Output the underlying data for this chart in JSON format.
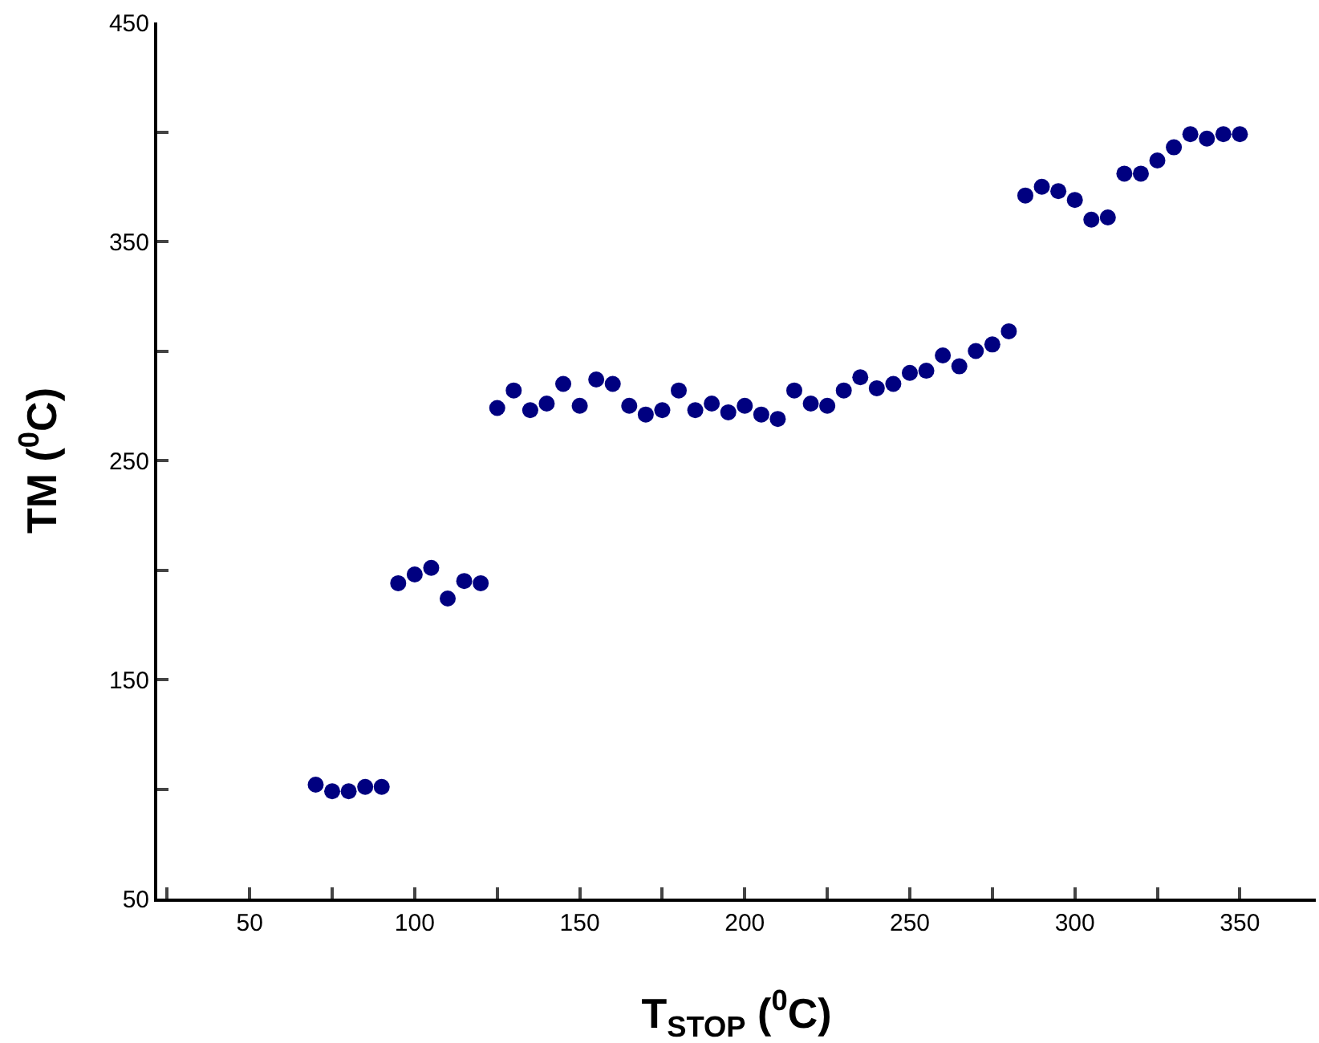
{
  "chart_data": {
    "type": "scatter",
    "xlabel": "T$_{STOP}$ ($^{0}$C)",
    "ylabel": "TM ($^{0}$C)",
    "x": [
      70,
      75,
      80,
      85,
      90,
      95,
      100,
      105,
      110,
      115,
      120,
      125,
      130,
      135,
      140,
      145,
      150,
      155,
      160,
      165,
      170,
      175,
      180,
      185,
      190,
      195,
      200,
      205,
      210,
      215,
      220,
      225,
      230,
      235,
      240,
      245,
      250,
      255,
      260,
      265,
      270,
      275,
      280,
      285,
      290,
      295,
      300,
      305,
      310,
      315,
      320,
      325,
      330,
      335,
      340,
      345,
      350
    ],
    "series": [
      {
        "color": "#000080",
        "values": [
          102,
          99,
          99,
          101,
          101,
          194,
          198,
          201,
          187,
          195,
          194,
          274,
          282,
          273,
          276,
          285,
          275,
          287,
          285,
          275,
          271,
          273,
          282,
          273,
          276,
          272,
          275,
          271,
          269,
          282,
          276,
          275,
          282,
          288,
          283,
          285,
          290,
          291,
          298,
          293,
          300,
          303,
          309,
          371,
          375,
          373,
          369,
          360,
          361,
          381,
          381,
          387,
          393,
          399,
          397,
          399,
          399
        ]
      }
    ],
    "xlim": [
      22,
      373
    ],
    "ylim": [
      50,
      450
    ],
    "xticks": [
      {
        "value": 25,
        "label": null
      },
      50,
      {
        "value": 75,
        "label": null
      },
      100,
      {
        "value": 125,
        "label": null
      },
      150,
      {
        "value": 175,
        "label": null
      },
      200,
      {
        "value": 225,
        "label": null
      },
      250,
      {
        "value": 275,
        "label": null
      },
      300,
      {
        "value": 325,
        "label": null
      },
      350
    ],
    "yticks": [
      50,
      {
        "value": 100,
        "label": null
      },
      150,
      {
        "value": 200,
        "label": null
      },
      250,
      {
        "value": 300,
        "label": null
      },
      350,
      {
        "value": 400,
        "label": null
      },
      450
    ],
    "grid": false,
    "legend": false,
    "marker": "circle"
  }
}
